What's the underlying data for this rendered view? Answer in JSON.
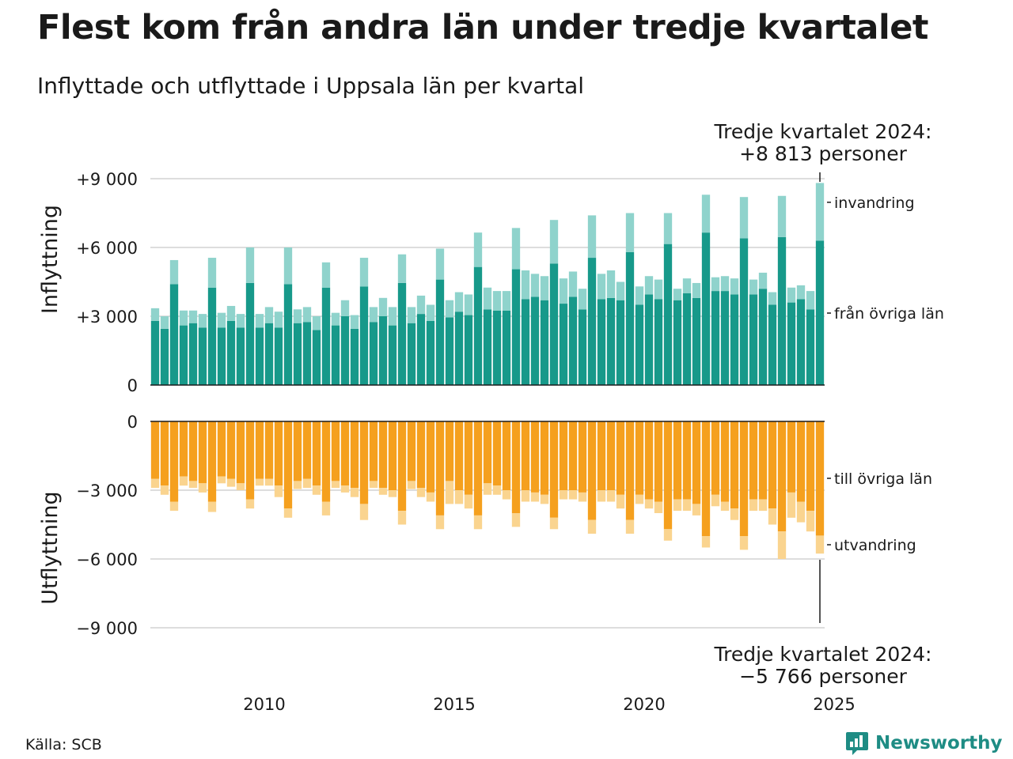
{
  "title": "Flest kom från andra län under tredje kvartalet",
  "subtitle": "Inflyttade och utflyttade i Uppsala län per kvartal",
  "source": "Källa: SCB",
  "brand": "Newsworthy",
  "colors": {
    "in_domestic": "#17998a",
    "in_immigration": "#8fd3cc",
    "out_domestic": "#f5a01e",
    "out_emigration": "#fad48f",
    "grid": "#dddddd",
    "brand": "#1e8c84"
  },
  "chart_data": {
    "type": "bar",
    "stacked": true,
    "x_start": "2007 K1",
    "x_end": "2024 K3",
    "x_ticks": [
      "2010",
      "2015",
      "2020",
      "2025"
    ],
    "annotation_top": [
      "Tredje kvartalet 2024:",
      "+8 813 personer"
    ],
    "annotation_bottom": [
      "Tredje kvartalet 2024:",
      "−5 766 personer"
    ],
    "panels": [
      {
        "ylabel": "Inflyttning",
        "ylim": [
          0,
          9000
        ],
        "y_ticks": [
          "0",
          "+3 000",
          "+6 000",
          "+9 000"
        ],
        "y_tick_values": [
          0,
          3000,
          6000,
          9000
        ],
        "series": [
          {
            "name": "från övriga län",
            "values": [
              2800,
              2450,
              4400,
              2600,
              2700,
              2500,
              4250,
              2500,
              2800,
              2500,
              4450,
              2500,
              2700,
              2500,
              4400,
              2700,
              2750,
              2400,
              4250,
              2600,
              3000,
              2450,
              4300,
              2750,
              3000,
              2600,
              4450,
              2700,
              3100,
              2800,
              4600,
              2950,
              3200,
              3050,
              5150,
              3300,
              3250,
              3250,
              5050,
              3750,
              3850,
              3700,
              5300,
              3550,
              3850,
              3300,
              5550,
              3750,
              3800,
              3700,
              5800,
              3500,
              3950,
              3750,
              6150,
              3700,
              4000,
              3800,
              6650,
              4100,
              4100,
              3950,
              6400,
              3950,
              4200,
              3500,
              6450,
              3600,
              3750,
              3300,
              6300
            ]
          },
          {
            "name": "invandring",
            "values": [
              550,
              550,
              1050,
              650,
              550,
              600,
              1300,
              650,
              650,
              600,
              1550,
              600,
              700,
              700,
              1600,
              600,
              650,
              600,
              1100,
              550,
              700,
              600,
              1250,
              650,
              800,
              800,
              1250,
              700,
              800,
              700,
              1350,
              750,
              850,
              900,
              1500,
              950,
              850,
              850,
              1800,
              1250,
              1000,
              1050,
              1900,
              1100,
              1100,
              900,
              1850,
              1100,
              1200,
              800,
              1700,
              800,
              800,
              850,
              1350,
              500,
              650,
              650,
              1650,
              600,
              650,
              700,
              1800,
              650,
              700,
              550,
              1800,
              650,
              600,
              800,
              2513
            ]
          }
        ]
      },
      {
        "ylabel": "Utflyttning",
        "ylim": [
          -9000,
          0
        ],
        "y_ticks": [
          "0",
          "−3 000",
          "−6 000",
          "−9 000"
        ],
        "y_tick_values": [
          0,
          -3000,
          -6000,
          -9000
        ],
        "series": [
          {
            "name": "till övriga län",
            "values": [
              -2500,
              -2800,
              -3500,
              -2400,
              -2600,
              -2700,
              -3500,
              -2400,
              -2500,
              -2700,
              -3400,
              -2500,
              -2500,
              -2800,
              -3800,
              -2600,
              -2500,
              -2800,
              -3500,
              -2600,
              -2800,
              -2900,
              -3600,
              -2600,
              -2900,
              -3000,
              -3900,
              -2600,
              -2900,
              -3100,
              -4100,
              -2600,
              -3000,
              -3200,
              -4100,
              -2700,
              -2800,
              -3000,
              -4000,
              -3000,
              -3100,
              -3200,
              -4200,
              -3000,
              -3000,
              -3100,
              -4300,
              -3000,
              -3000,
              -3200,
              -4300,
              -3200,
              -3400,
              -3500,
              -4700,
              -3400,
              -3400,
              -3600,
              -5000,
              -3200,
              -3500,
              -3800,
              -5000,
              -3400,
              -3400,
              -3800,
              -4800,
              -3100,
              -3500,
              -3900,
              -4980
            ]
          },
          {
            "name": "utvandring",
            "values": [
              -400,
              -400,
              -400,
              -400,
              -300,
              -400,
              -450,
              -300,
              -350,
              -300,
              -400,
              -300,
              -300,
              -500,
              -400,
              -350,
              -400,
              -400,
              -600,
              -300,
              -300,
              -400,
              -700,
              -300,
              -300,
              -300,
              -600,
              -350,
              -400,
              -400,
              -600,
              -1000,
              -600,
              -600,
              -600,
              -500,
              -400,
              -400,
              -600,
              -500,
              -400,
              -400,
              -500,
              -400,
              -400,
              -400,
              -600,
              -500,
              -500,
              -600,
              -600,
              -400,
              -400,
              -500,
              -500,
              -500,
              -500,
              -500,
              -500,
              -500,
              -400,
              -500,
              -600,
              -500,
              -500,
              -700,
              -1200,
              -1100,
              -900,
              -900,
              -786
            ]
          }
        ]
      }
    ]
  }
}
